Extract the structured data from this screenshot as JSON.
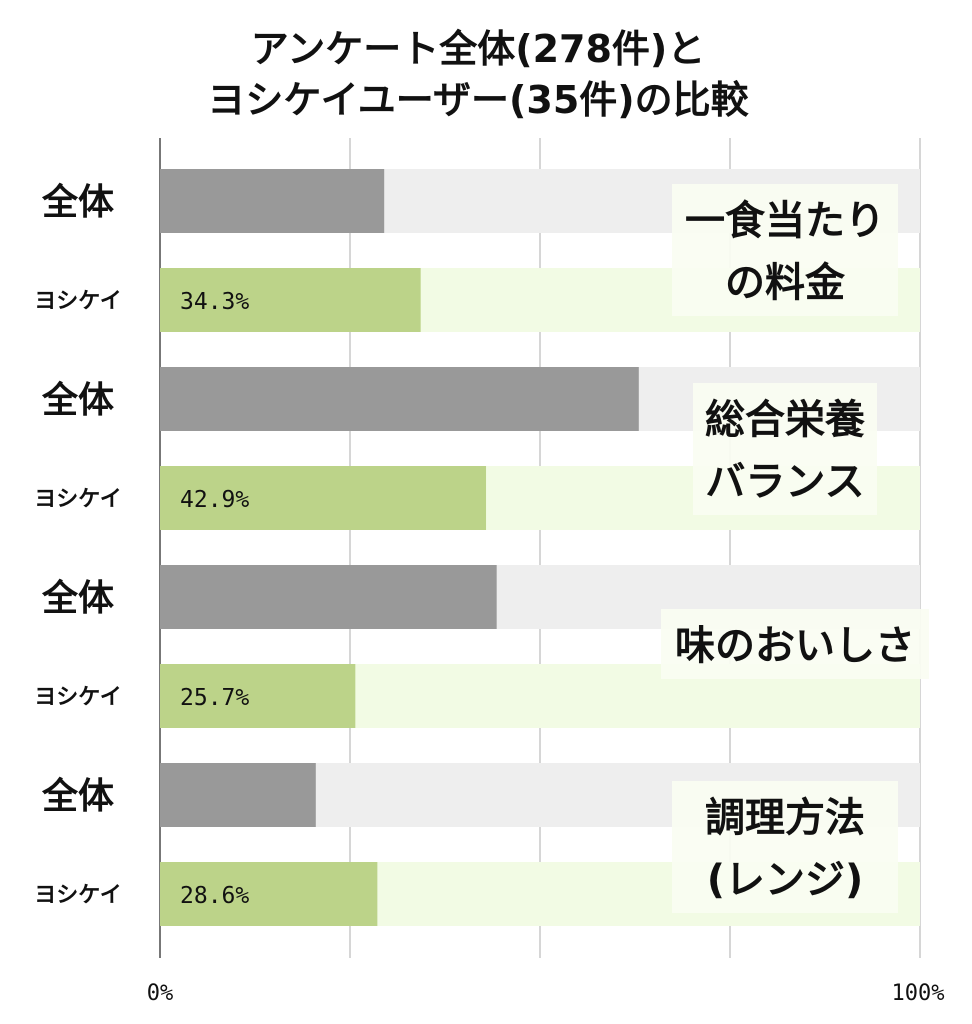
{
  "chart_data": {
    "type": "bar",
    "orientation": "horizontal",
    "title": [
      "アンケート全体(278件)と",
      "ヨシケイユーザー(35件)の比較"
    ],
    "xlim": [
      0,
      100
    ],
    "x_ticks": [
      "0%",
      "100%"
    ],
    "grid": true,
    "categories": [
      {
        "name": [
          "一食当たり",
          "の料金"
        ],
        "rows": [
          {
            "label": "全体",
            "value": 29.5,
            "value_label": ""
          },
          {
            "label": "ヨシケイ",
            "value": 34.3,
            "value_label": "34.3%"
          }
        ]
      },
      {
        "name": [
          "総合栄養",
          "バランス"
        ],
        "rows": [
          {
            "label": "全体",
            "value": 63.0,
            "value_label": ""
          },
          {
            "label": "ヨシケイ",
            "value": 42.9,
            "value_label": "42.9%"
          }
        ]
      },
      {
        "name": [
          "味のおいしさ"
        ],
        "rows": [
          {
            "label": "全体",
            "value": 44.3,
            "value_label": ""
          },
          {
            "label": "ヨシケイ",
            "value": 25.7,
            "value_label": "25.7%"
          }
        ]
      },
      {
        "name": [
          "調理方法",
          "(レンジ)"
        ],
        "rows": [
          {
            "label": "全体",
            "value": 20.5,
            "value_label": ""
          },
          {
            "label": "ヨシケイ",
            "value": 28.6,
            "value_label": "28.6%"
          }
        ]
      }
    ],
    "colors": {
      "zentai_fill": "#999999",
      "zentai_bg": "#eeeeee",
      "yoshikei_fill": "#bcd389",
      "yoshikei_bg": "#f2fbe4",
      "grid": "#c8c8c8",
      "label_bg": "#fafdf2"
    }
  }
}
